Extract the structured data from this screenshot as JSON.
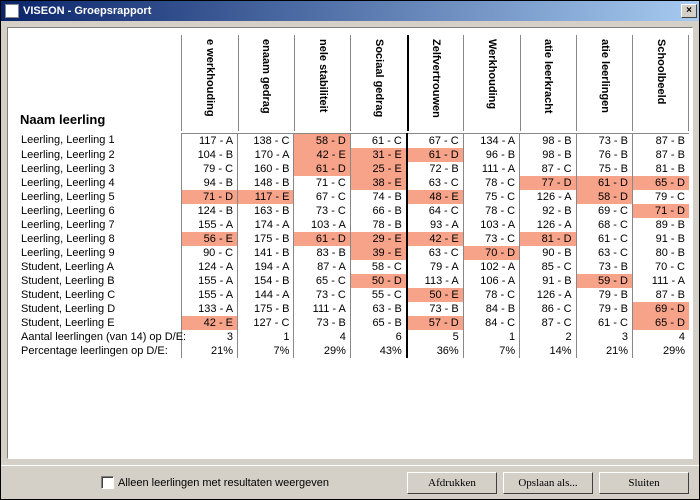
{
  "window": {
    "title": "VISEON - Groepsrapport"
  },
  "table": {
    "name_header": "Naam leerling",
    "columns": [
      {
        "label": "e werkhouding"
      },
      {
        "label": "enaam gedrag"
      },
      {
        "label": "nele stabiliteit"
      },
      {
        "label": "Sociaal gedrag"
      },
      {
        "label": "Zelfvertrouwen"
      },
      {
        "label": "Werkhouding"
      },
      {
        "label": "atie leerkracht"
      },
      {
        "label": "atie leerlingen"
      },
      {
        "label": "Schoolbeeld"
      }
    ],
    "divider_after_col": 3,
    "rows": [
      {
        "name": "Leerling, Leerling 1",
        "cells": [
          {
            "v": "117 - A"
          },
          {
            "v": "138 - C"
          },
          {
            "v": "58 - D",
            "f": true
          },
          {
            "v": "61 - C"
          },
          {
            "v": "67 - C"
          },
          {
            "v": "134 - A"
          },
          {
            "v": "98 - B"
          },
          {
            "v": "73 - B"
          },
          {
            "v": "87 - B"
          }
        ]
      },
      {
        "name": "Leerling, Leerling 2",
        "cells": [
          {
            "v": "104 - B"
          },
          {
            "v": "170 - A"
          },
          {
            "v": "42 - E",
            "f": true
          },
          {
            "v": "31 - E",
            "f": true
          },
          {
            "v": "61 - D",
            "f": true
          },
          {
            "v": "96 - B"
          },
          {
            "v": "98 - B"
          },
          {
            "v": "76 - B"
          },
          {
            "v": "87 - B"
          }
        ]
      },
      {
        "name": "Leerling, Leerling 3",
        "cells": [
          {
            "v": "79 - C"
          },
          {
            "v": "160 - B"
          },
          {
            "v": "61 - D",
            "f": true
          },
          {
            "v": "25 - E",
            "f": true
          },
          {
            "v": "72 - B"
          },
          {
            "v": "111 - A"
          },
          {
            "v": "87 - C"
          },
          {
            "v": "75 - B"
          },
          {
            "v": "81 - B"
          }
        ]
      },
      {
        "name": "Leerling, Leerling 4",
        "cells": [
          {
            "v": "94 - B"
          },
          {
            "v": "148 - B"
          },
          {
            "v": "71 - C"
          },
          {
            "v": "38 - E",
            "f": true
          },
          {
            "v": "63 - C"
          },
          {
            "v": "78 - C"
          },
          {
            "v": "77 - D",
            "f": true
          },
          {
            "v": "61 - D",
            "f": true
          },
          {
            "v": "65 - D",
            "f": true
          }
        ]
      },
      {
        "name": "Leerling, Leerling 5",
        "cells": [
          {
            "v": "71 - D",
            "f": true
          },
          {
            "v": "117 - E",
            "f": true
          },
          {
            "v": "67 - C"
          },
          {
            "v": "74 - B"
          },
          {
            "v": "48 - E",
            "f": true
          },
          {
            "v": "75 - C"
          },
          {
            "v": "126 - A"
          },
          {
            "v": "58 - D",
            "f": true
          },
          {
            "v": "79 - C"
          }
        ]
      },
      {
        "name": "Leerling, Leerling 6",
        "cells": [
          {
            "v": "124 - B"
          },
          {
            "v": "163 - B"
          },
          {
            "v": "73 - C"
          },
          {
            "v": "66 - B"
          },
          {
            "v": "64 - C"
          },
          {
            "v": "78 - C"
          },
          {
            "v": "92 - B"
          },
          {
            "v": "69 - C"
          },
          {
            "v": "71 - D",
            "f": true
          }
        ]
      },
      {
        "name": "Leerling, Leerling 7",
        "cells": [
          {
            "v": "155 - A"
          },
          {
            "v": "174 - A"
          },
          {
            "v": "103 - A"
          },
          {
            "v": "78 - B"
          },
          {
            "v": "93 - A"
          },
          {
            "v": "103 - A"
          },
          {
            "v": "126 - A"
          },
          {
            "v": "68 - C"
          },
          {
            "v": "89 - B"
          }
        ]
      },
      {
        "name": "Leerling, Leerling 8",
        "cells": [
          {
            "v": "56 - E",
            "f": true
          },
          {
            "v": "175 - B"
          },
          {
            "v": "61 - D",
            "f": true
          },
          {
            "v": "29 - E",
            "f": true
          },
          {
            "v": "42 - E",
            "f": true
          },
          {
            "v": "73 - C"
          },
          {
            "v": "81 - D",
            "f": true
          },
          {
            "v": "61 - C"
          },
          {
            "v": "91 - B"
          }
        ]
      },
      {
        "name": "Leerling, Leerling 9",
        "cells": [
          {
            "v": "90 - C"
          },
          {
            "v": "141 - B"
          },
          {
            "v": "83 - B"
          },
          {
            "v": "39 - E",
            "f": true
          },
          {
            "v": "63 - C"
          },
          {
            "v": "70 - D",
            "f": true
          },
          {
            "v": "90 - B"
          },
          {
            "v": "63 - C"
          },
          {
            "v": "80 - B"
          }
        ]
      },
      {
        "name": "Student, Leerling A",
        "cells": [
          {
            "v": "124 - A"
          },
          {
            "v": "194 - A"
          },
          {
            "v": "87 - A"
          },
          {
            "v": "58 - C"
          },
          {
            "v": "79 - A"
          },
          {
            "v": "102 - A"
          },
          {
            "v": "85 - C"
          },
          {
            "v": "73 - B"
          },
          {
            "v": "70 - C"
          }
        ]
      },
      {
        "name": "Student, Leerling B",
        "cells": [
          {
            "v": "155 - A"
          },
          {
            "v": "154 - B"
          },
          {
            "v": "65 - C"
          },
          {
            "v": "50 - D",
            "f": true
          },
          {
            "v": "113 - A"
          },
          {
            "v": "106 - A"
          },
          {
            "v": "91 - B"
          },
          {
            "v": "59 - D",
            "f": true
          },
          {
            "v": "111 - A"
          }
        ]
      },
      {
        "name": "Student, Leerling C",
        "cells": [
          {
            "v": "155 - A"
          },
          {
            "v": "144 - A"
          },
          {
            "v": "73 - C"
          },
          {
            "v": "55 - C"
          },
          {
            "v": "50 - E",
            "f": true
          },
          {
            "v": "78 - C"
          },
          {
            "v": "126 - A"
          },
          {
            "v": "79 - B"
          },
          {
            "v": "87 - B"
          }
        ]
      },
      {
        "name": "Student, Leerling D",
        "cells": [
          {
            "v": "133 - A"
          },
          {
            "v": "175 - B"
          },
          {
            "v": "111 - A"
          },
          {
            "v": "63 - B"
          },
          {
            "v": "73 - B"
          },
          {
            "v": "84 - B"
          },
          {
            "v": "86 - C"
          },
          {
            "v": "79 - B"
          },
          {
            "v": "69 - D",
            "f": true
          }
        ]
      },
      {
        "name": "Student, Leerling E",
        "cells": [
          {
            "v": "42 - E",
            "f": true
          },
          {
            "v": "127 - C"
          },
          {
            "v": "73 - B"
          },
          {
            "v": "65 - B"
          },
          {
            "v": "57 - D",
            "f": true
          },
          {
            "v": "84 - C"
          },
          {
            "v": "87 - C"
          },
          {
            "v": "61 - C"
          },
          {
            "v": "65 - D",
            "f": true
          }
        ]
      }
    ],
    "summary": {
      "count_label": "Aantal leerlingen (van 14) op D/E:",
      "counts": [
        "3",
        "1",
        "4",
        "6",
        "5",
        "1",
        "2",
        "3",
        "4"
      ],
      "pct_label": "Percentage leerlingen op D/E:",
      "pcts": [
        "21%",
        "7%",
        "29%",
        "43%",
        "36%",
        "7%",
        "14%",
        "21%",
        "29%"
      ]
    }
  },
  "footer": {
    "checkbox_label": "Alleen leerlingen met resultaten weergeven",
    "print": "Afdrukken",
    "saveas": "Opslaan als...",
    "close": "Sluiten"
  },
  "colors": {
    "flag_bg": "#f7a38a",
    "titlebar_start": "#0a246a",
    "titlebar_end": "#a6caf0",
    "chrome": "#d4d0c8"
  }
}
